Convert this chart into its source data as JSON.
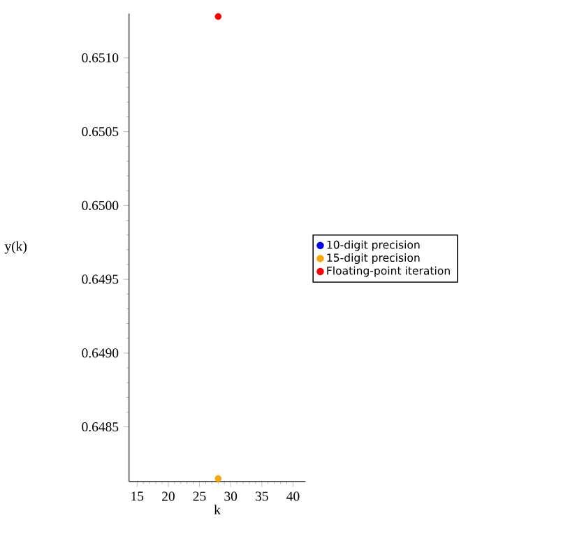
{
  "chart_data": {
    "type": "scatter",
    "xlabel": "k",
    "ylabel": "y(k)",
    "xlim": [
      13.7,
      42
    ],
    "ylim": [
      0.64813,
      0.6513
    ],
    "xticks": [
      15,
      20,
      25,
      30,
      35,
      40
    ],
    "yticks": [
      0.6485,
      {
        "value": 0.649,
        "label": "0.6490"
      },
      0.6495,
      {
        "value": 0.65,
        "label": "0.6500"
      },
      0.6505,
      {
        "value": 0.651,
        "label": "0.6510"
      }
    ],
    "x": [
      28
    ],
    "marker": "circle",
    "legend": "right",
    "grid": false,
    "series": [
      {
        "name": "10-digit precision",
        "color": "#0000ff",
        "values": [
          null
        ]
      },
      {
        "name": "15-digit precision",
        "color": "#ffa500",
        "values": [
          0.64815
        ]
      },
      {
        "name": "Floating-point iteration",
        "color": "#ff0000",
        "values": [
          0.65128
        ]
      }
    ]
  }
}
